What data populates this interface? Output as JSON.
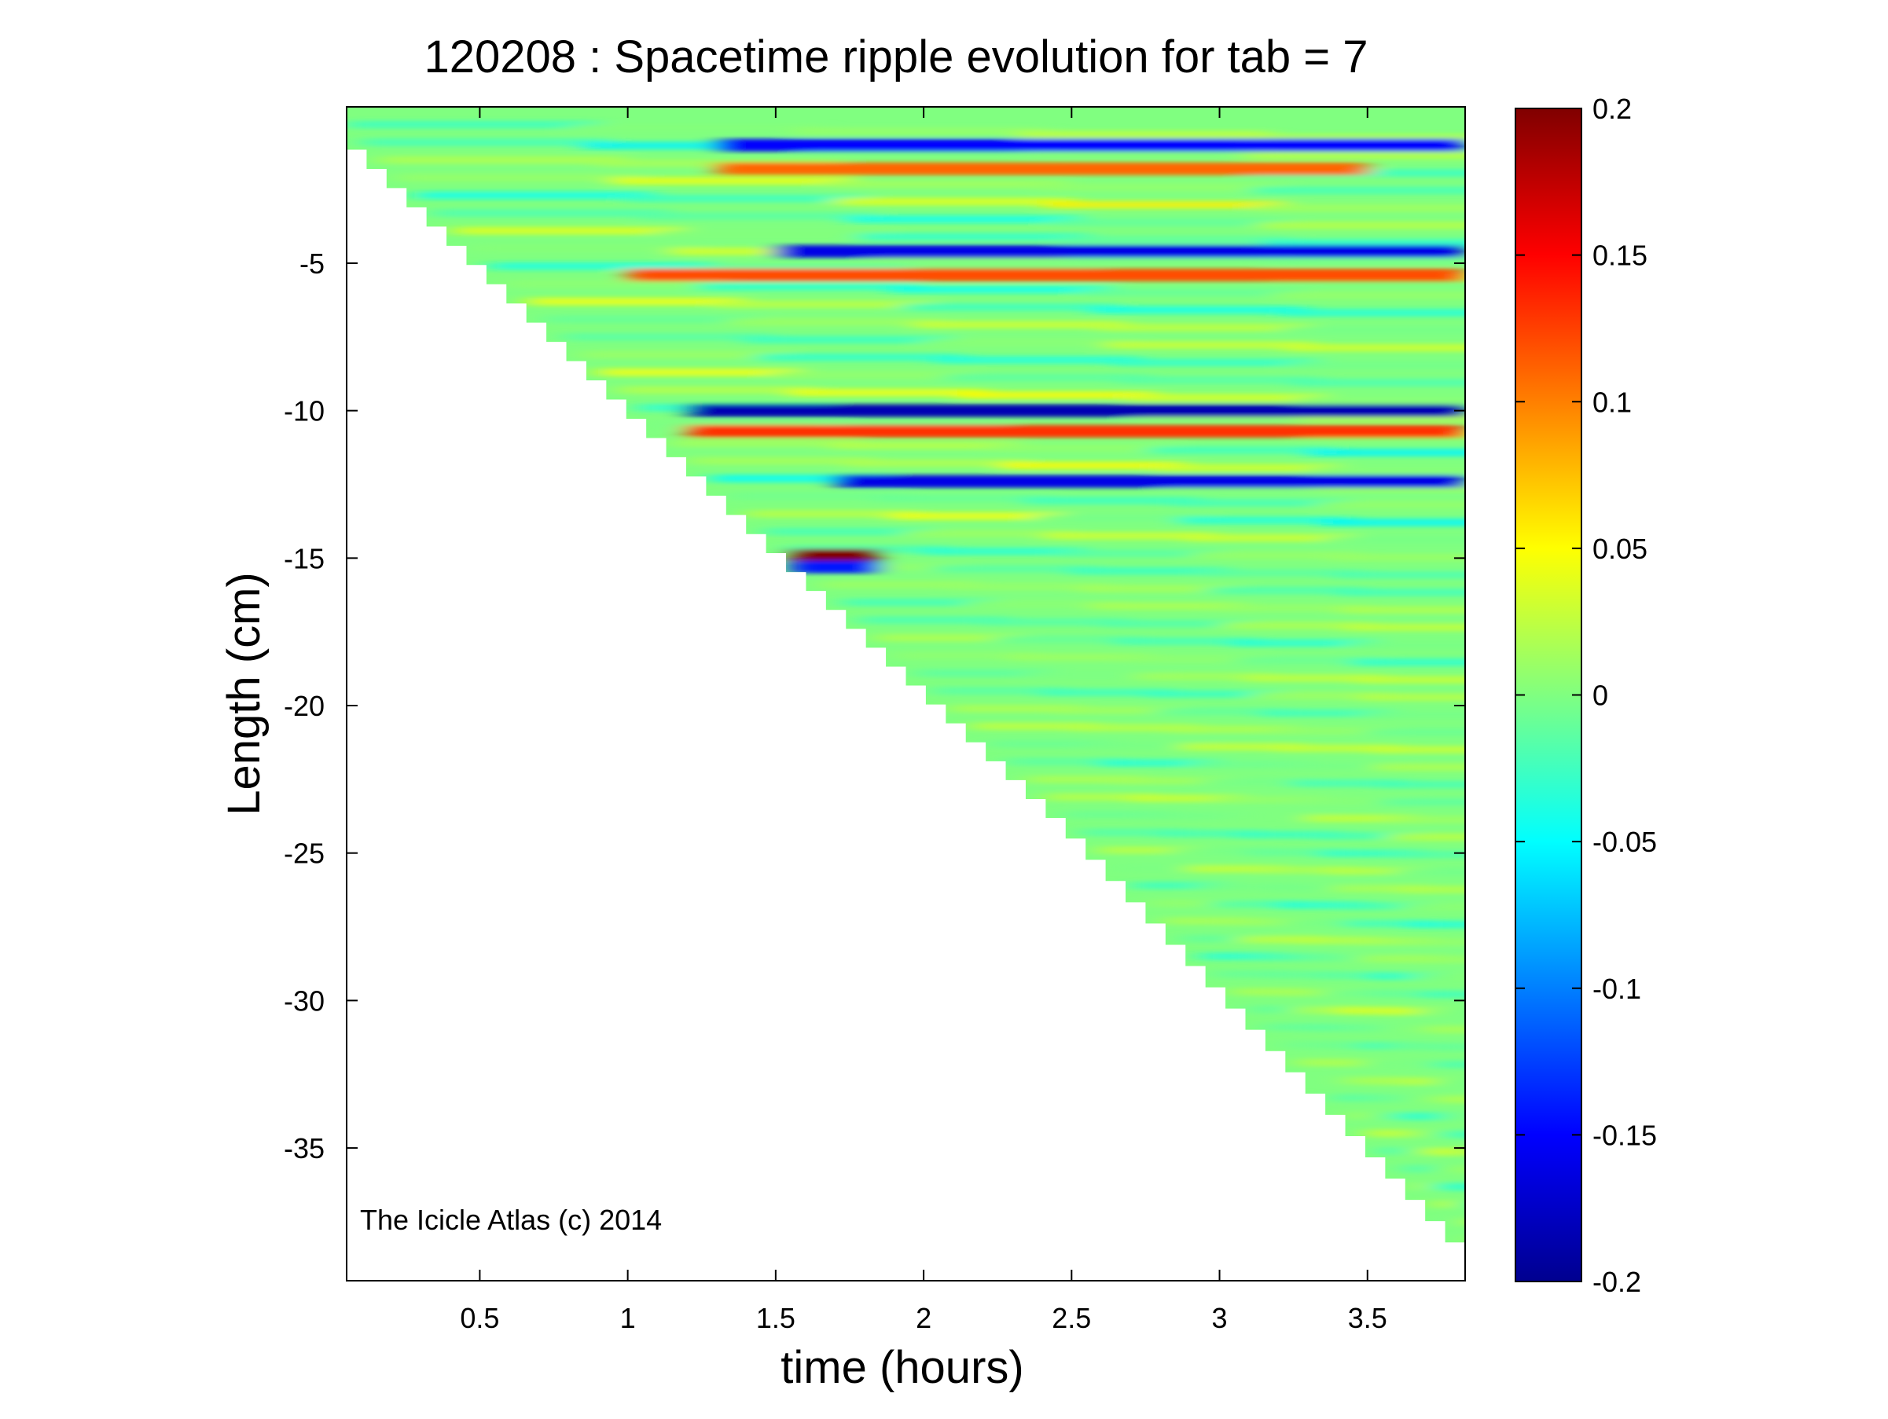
{
  "chart_data": {
    "type": "heatmap",
    "title": "120208 : Spacetime ripple evolution for tab = 7",
    "xlabel": "time (hours)",
    "ylabel": "Length (cm)",
    "xlim": [
      0.05,
      3.83
    ],
    "ylim": [
      -39.5,
      0.3
    ],
    "xticks": [
      0.5,
      1,
      1.5,
      2,
      2.5,
      3,
      3.5
    ],
    "xtick_labels": [
      "0.5",
      "1",
      "1.5",
      "2",
      "2.5",
      "3",
      "3.5"
    ],
    "yticks": [
      -5,
      -10,
      -15,
      -20,
      -25,
      -30,
      -35
    ],
    "ytick_labels": [
      "-5",
      "-10",
      "-15",
      "-20",
      "-25",
      "-30",
      "-35"
    ],
    "colorbar": {
      "range": [
        -0.2,
        0.2
      ],
      "ticks": [
        0.2,
        0.15,
        0.1,
        0.05,
        0,
        -0.05,
        -0.1,
        -0.15,
        -0.2
      ],
      "tick_labels": [
        "0.2",
        "0.15",
        "0.1",
        "0.05",
        "0",
        "-0.05",
        "-0.1",
        "-0.15",
        "-0.2"
      ],
      "colormap": "jet"
    },
    "data_boundary": {
      "description": "icicle tip length decreases roughly linearly with time",
      "points": [
        [
          0.05,
          -0.5
        ],
        [
          1.5,
          -14.5
        ],
        [
          2.5,
          -24.0
        ],
        [
          3.83,
          -38.2
        ]
      ]
    },
    "features": [
      {
        "t_range": [
          1.2,
          3.83
        ],
        "length": -10.0,
        "value": -0.18
      },
      {
        "t_range": [
          1.2,
          3.83
        ],
        "length": -10.7,
        "value": 0.13
      },
      {
        "t_range": [
          1.7,
          3.83
        ],
        "length": -12.4,
        "value": -0.16
      },
      {
        "t_range": [
          1.0,
          3.83
        ],
        "length": -5.4,
        "value": 0.12
      },
      {
        "t_range": [
          1.5,
          3.83
        ],
        "length": -4.6,
        "value": -0.16
      },
      {
        "t_range": [
          1.3,
          3.83
        ],
        "length": -1.0,
        "value": -0.15
      },
      {
        "t_range": [
          1.3,
          3.5
        ],
        "length": -1.8,
        "value": 0.11
      },
      {
        "t_range": [
          1.55,
          1.85
        ],
        "length": -14.9,
        "value": 0.2
      },
      {
        "t_range": [
          1.55,
          1.85
        ],
        "length": -15.3,
        "value": -0.14
      }
    ]
  },
  "watermark": "The Icicle Atlas (c) 2014",
  "colors": {
    "background": "#ffffff",
    "axes": "#000000",
    "neutral_field": "#80ff80"
  }
}
